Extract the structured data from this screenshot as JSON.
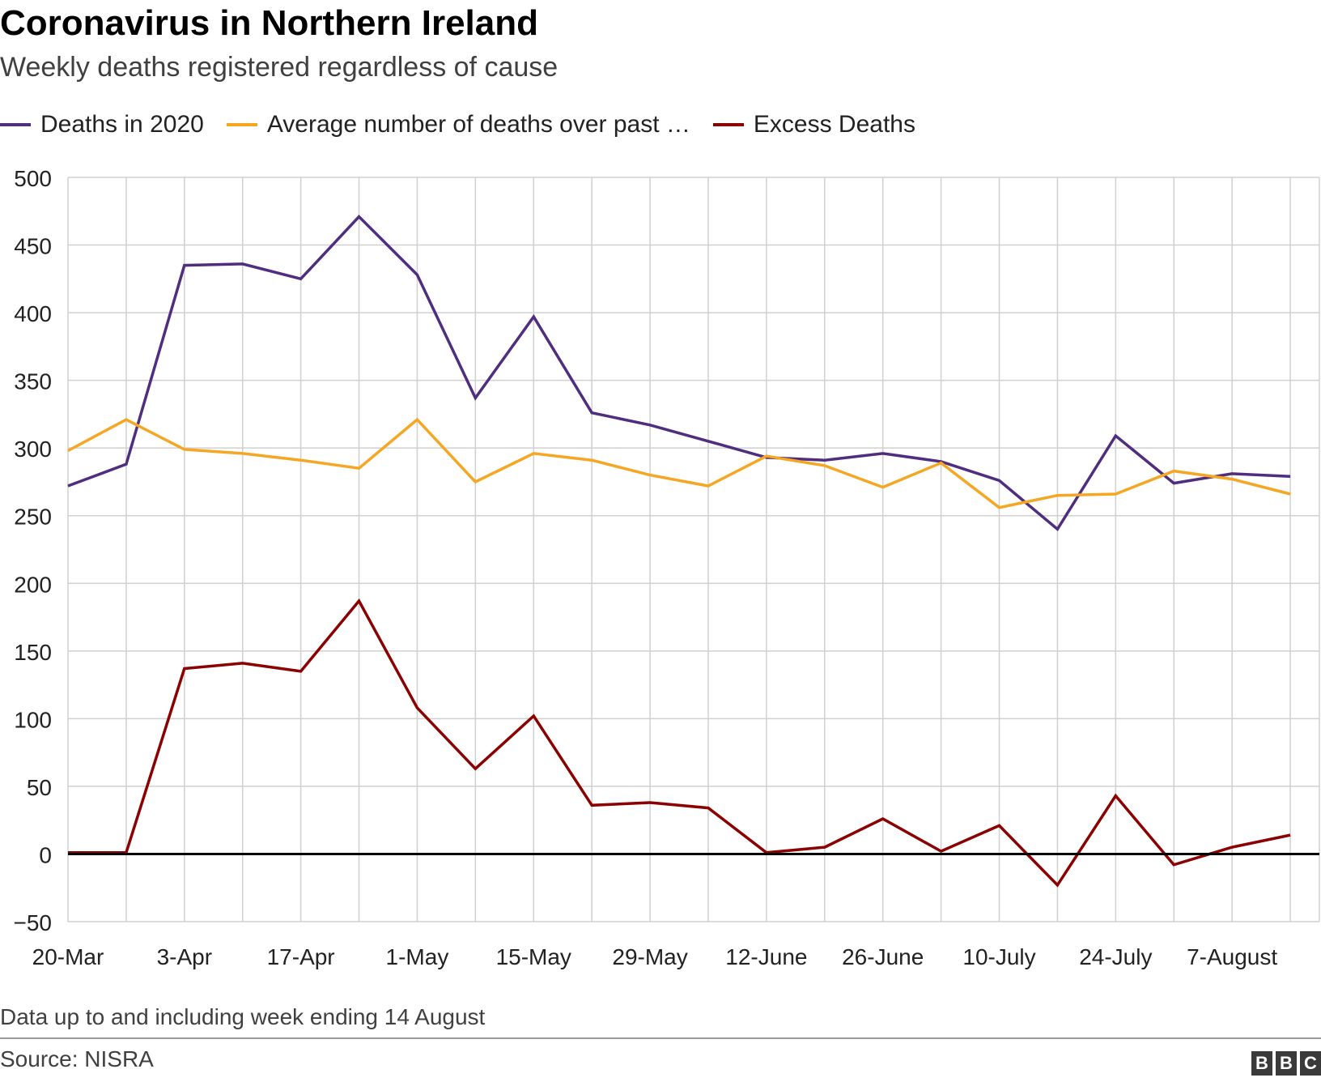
{
  "header": {
    "title": "Coronavirus in Northern Ireland",
    "subtitle": "Weekly deaths registered regardless of cause"
  },
  "legend": [
    {
      "label": "Deaths in 2020",
      "color": "#4f2d7f"
    },
    {
      "label": "Average number of deaths over past …",
      "color": "#f5a623"
    },
    {
      "label": "Excess Deaths",
      "color": "#8b0000"
    }
  ],
  "footer": {
    "note": "Data up to and including week ending 14 August",
    "source": "Source: NISRA",
    "logo": "BBC"
  },
  "chart_data": {
    "type": "line",
    "title": "Coronavirus in Northern Ireland",
    "subtitle": "Weekly deaths registered regardless of cause",
    "x_tick_labels": [
      "20-Mar",
      "3-Apr",
      "17-Apr",
      "1-May",
      "15-May",
      "29-May",
      "12-June",
      "26-June",
      "10-July",
      "24-July",
      "7-August"
    ],
    "x": [
      "20-Mar",
      "27-Mar",
      "3-Apr",
      "10-Apr",
      "17-Apr",
      "24-Apr",
      "1-May",
      "8-May",
      "15-May",
      "22-May",
      "29-May",
      "5-June",
      "12-June",
      "19-June",
      "26-June",
      "3-July",
      "10-July",
      "17-July",
      "24-July",
      "31-July",
      "7-August",
      "14-August"
    ],
    "ylim": [
      -50,
      500
    ],
    "yticks": [
      500,
      450,
      400,
      350,
      300,
      250,
      200,
      150,
      100,
      50,
      0,
      -50
    ],
    "grid": true,
    "legend_position": "top",
    "series": [
      {
        "name": "Deaths in 2020",
        "color": "#4f2d7f",
        "values": [
          272,
          288,
          435,
          436,
          425,
          471,
          428,
          337,
          397,
          326,
          317,
          305,
          293,
          291,
          296,
          290,
          276,
          240,
          309,
          274,
          281,
          279
        ]
      },
      {
        "name": "Average number of deaths over past …",
        "color": "#f5a623",
        "values": [
          298,
          321,
          299,
          296,
          291,
          285,
          321,
          275,
          296,
          291,
          280,
          272,
          294,
          287,
          271,
          289,
          256,
          265,
          266,
          283,
          277,
          266
        ]
      },
      {
        "name": "Excess Deaths",
        "color": "#8b0000",
        "values": [
          1,
          1,
          137,
          141,
          135,
          187,
          108,
          63,
          102,
          36,
          38,
          34,
          1,
          5,
          26,
          2,
          21,
          -23,
          43,
          -8,
          5,
          14
        ]
      }
    ]
  }
}
